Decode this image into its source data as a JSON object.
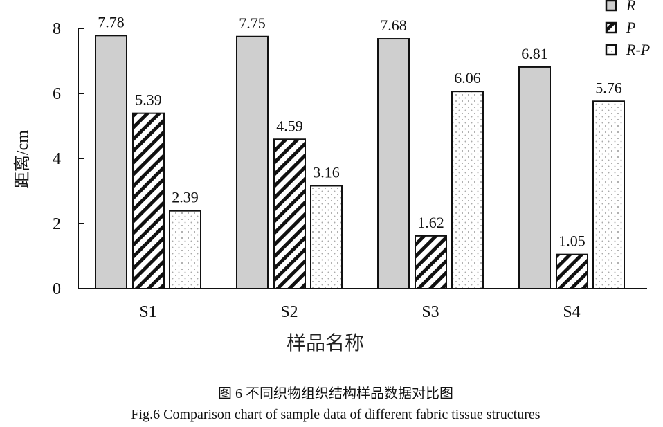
{
  "chart_data": {
    "type": "bar",
    "categories": [
      "S1",
      "S2",
      "S3",
      "S4"
    ],
    "series": [
      {
        "name": "R",
        "values": [
          7.78,
          7.75,
          7.68,
          6.81
        ],
        "pattern": "solid-gray",
        "color": "#cfcfcf"
      },
      {
        "name": "P",
        "values": [
          5.39,
          4.59,
          1.62,
          1.05
        ],
        "pattern": "diagonal-hatch",
        "color": "#111111"
      },
      {
        "name": "R-P",
        "values": [
          2.39,
          3.16,
          6.06,
          5.76
        ],
        "pattern": "dotted",
        "color": "#ffffff"
      }
    ],
    "data_labels": [
      [
        "7.78",
        "5.39",
        "2.39"
      ],
      [
        "7.75",
        "4.59",
        "3.16"
      ],
      [
        "7.68",
        "1.62",
        "6.06"
      ],
      [
        "6.81",
        "1.05",
        "5.76"
      ]
    ],
    "xlabel": "样品名称",
    "ylabel": "距离/cm",
    "ylim": [
      0,
      8
    ],
    "yticks": [
      "0",
      "2",
      "4",
      "6",
      "8"
    ],
    "grid": false,
    "legend_position": "top-right",
    "caption_cn": "图 6  不同织物组织结构样品数据对比图",
    "caption_en": "Fig.6 Comparison chart of sample data of different fabric tissue structures"
  }
}
